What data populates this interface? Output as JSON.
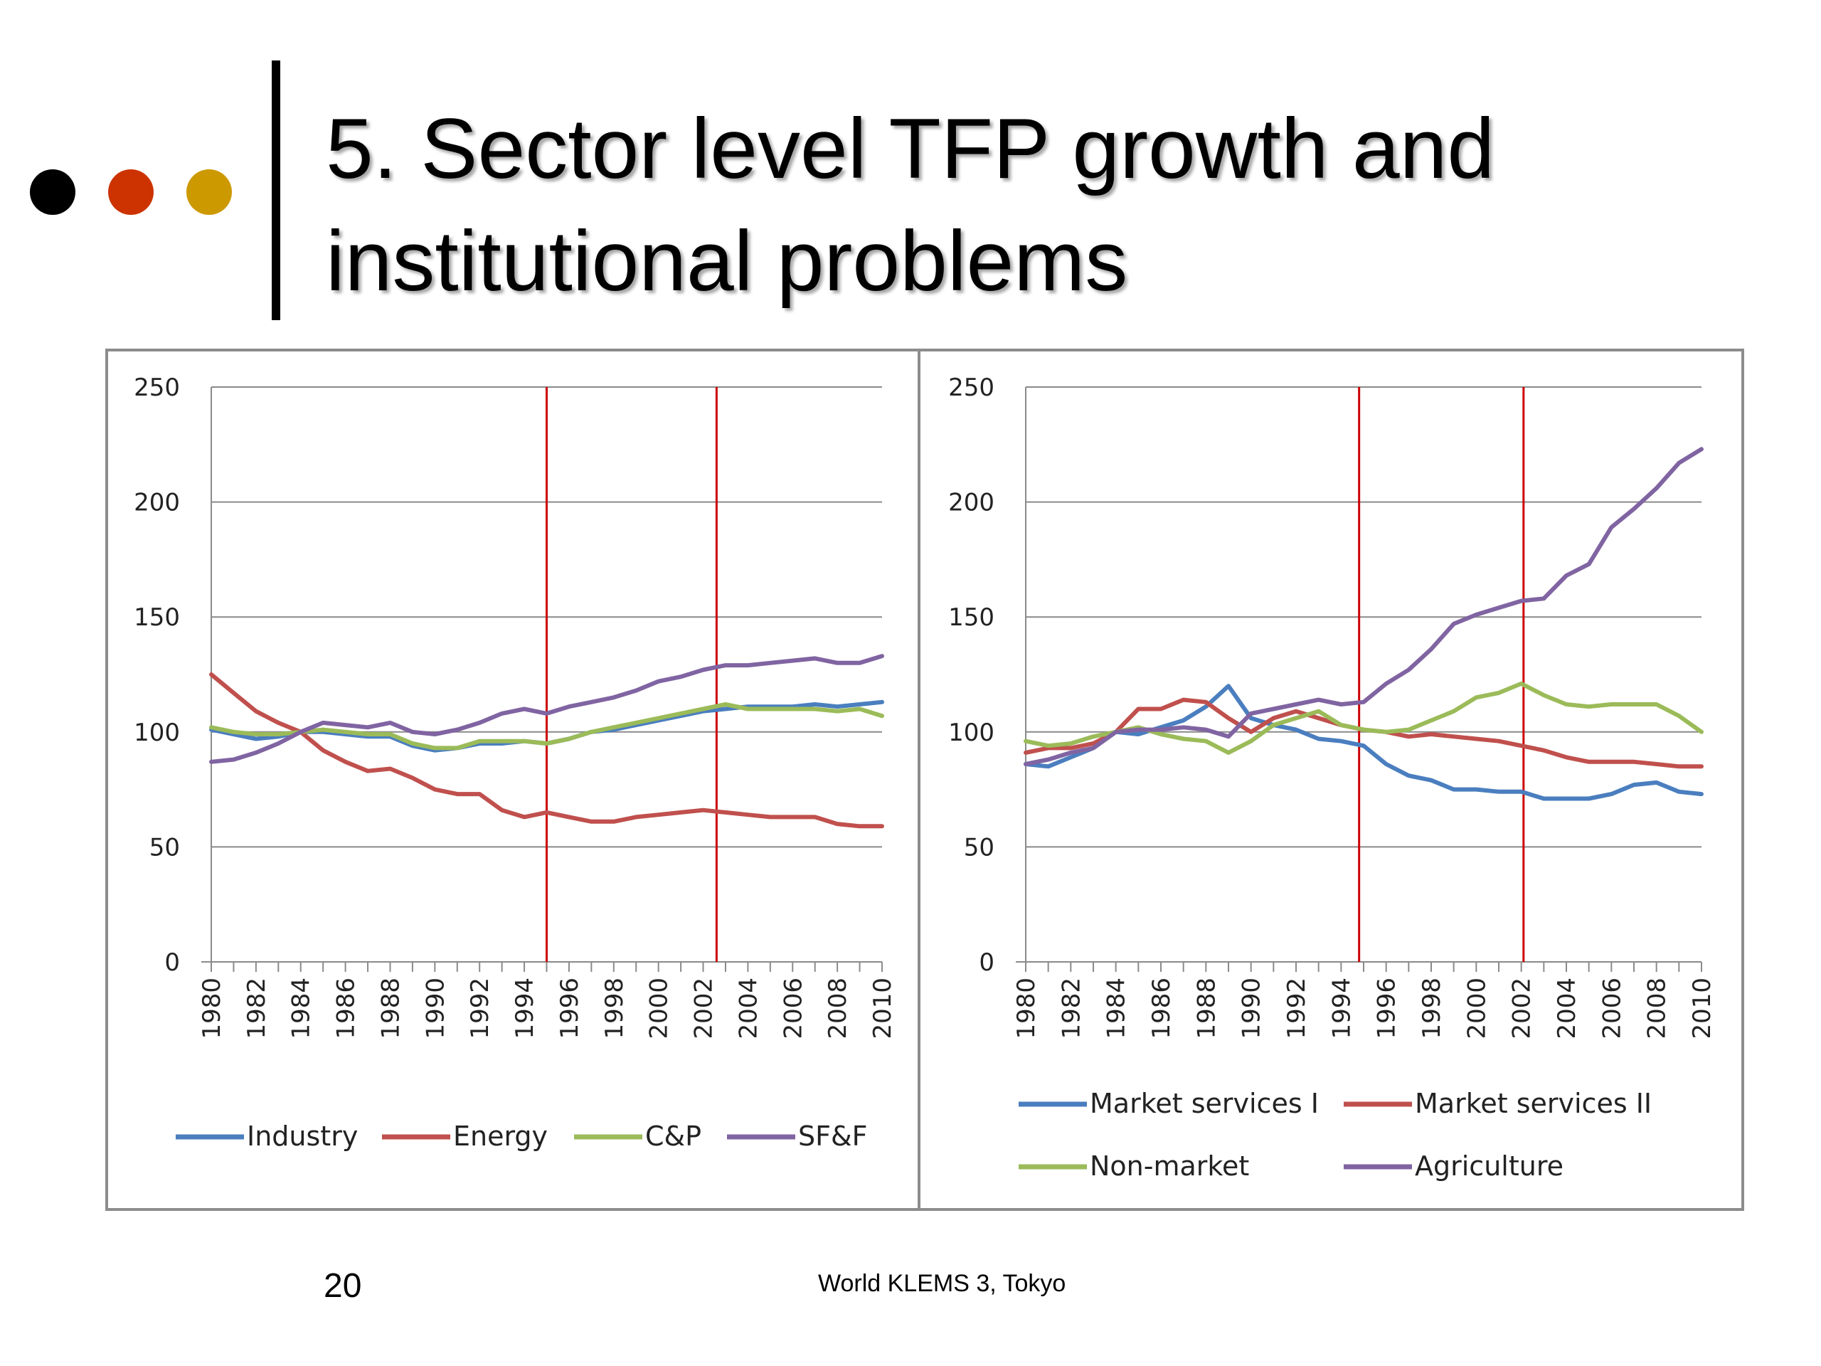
{
  "slide": {
    "title_line1": "5. Sector level TFP growth and",
    "title_line2": "institutional problems",
    "page_number": "20",
    "footer": "World KLEMS 3, Tokyo",
    "bullet_dot_colors": [
      "#000000",
      "#cc3300",
      "#cc9900"
    ]
  },
  "chart_data": [
    {
      "type": "line",
      "title": "",
      "xlabel": "",
      "ylabel": "",
      "ylim": [
        0,
        250
      ],
      "yticks": [
        0,
        50,
        100,
        150,
        200,
        250
      ],
      "x": [
        1980,
        1981,
        1982,
        1983,
        1984,
        1985,
        1986,
        1987,
        1988,
        1989,
        1990,
        1991,
        1992,
        1993,
        1994,
        1995,
        1996,
        1997,
        1998,
        1999,
        2000,
        2001,
        2002,
        2003,
        2004,
        2005,
        2006,
        2007,
        2008,
        2009,
        2010
      ],
      "xtick_labels": [
        "1980",
        "1982",
        "1984",
        "1986",
        "1988",
        "1990",
        "1992",
        "1994",
        "1996",
        "1998",
        "2000",
        "2002",
        "2004",
        "2006",
        "2008",
        "2010"
      ],
      "grid": true,
      "legend": "bottom",
      "reference_lines_x": [
        1995,
        2002.6
      ],
      "reference_line_color": "#cc0000",
      "series": [
        {
          "name": "Industry",
          "color": "#4a7ebf",
          "values": [
            101,
            99,
            97,
            98,
            100,
            100,
            99,
            98,
            98,
            94,
            92,
            93,
            95,
            95,
            96,
            95,
            97,
            100,
            101,
            103,
            105,
            107,
            109,
            110,
            111,
            111,
            111,
            112,
            111,
            112,
            113
          ]
        },
        {
          "name": "Energy",
          "color": "#c0504d",
          "values": [
            125,
            117,
            109,
            104,
            100,
            92,
            87,
            83,
            84,
            80,
            75,
            73,
            73,
            66,
            63,
            65,
            63,
            61,
            61,
            63,
            64,
            65,
            66,
            65,
            64,
            63,
            63,
            63,
            60,
            59,
            59
          ]
        },
        {
          "name": "C&P",
          "color": "#9bbb59",
          "values": [
            102,
            100,
            99,
            99,
            100,
            101,
            100,
            99,
            99,
            95,
            93,
            93,
            96,
            96,
            96,
            95,
            97,
            100,
            102,
            104,
            106,
            108,
            110,
            112,
            110,
            110,
            110,
            110,
            109,
            110,
            107
          ]
        },
        {
          "name": "SF&F",
          "color": "#8064a2",
          "values": [
            87,
            88,
            91,
            95,
            100,
            104,
            103,
            102,
            104,
            100,
            99,
            101,
            104,
            108,
            110,
            108,
            111,
            113,
            115,
            118,
            122,
            124,
            127,
            129,
            129,
            130,
            131,
            132,
            130,
            130,
            133
          ]
        }
      ]
    },
    {
      "type": "line",
      "title": "",
      "xlabel": "",
      "ylabel": "",
      "ylim": [
        0,
        250
      ],
      "yticks": [
        0,
        50,
        100,
        150,
        200,
        250
      ],
      "x": [
        1980,
        1981,
        1982,
        1983,
        1984,
        1985,
        1986,
        1987,
        1988,
        1989,
        1990,
        1991,
        1992,
        1993,
        1994,
        1995,
        1996,
        1997,
        1998,
        1999,
        2000,
        2001,
        2002,
        2003,
        2004,
        2005,
        2006,
        2007,
        2008,
        2009,
        2010
      ],
      "xtick_labels": [
        "1980",
        "1982",
        "1984",
        "1986",
        "1988",
        "1990",
        "1992",
        "1994",
        "1996",
        "1998",
        "2000",
        "2002",
        "2004",
        "2006",
        "2008",
        "2010"
      ],
      "grid": true,
      "legend": "bottom",
      "reference_lines_x": [
        1994.8,
        2002.1
      ],
      "reference_line_color": "#cc0000",
      "series": [
        {
          "name": "Market services I",
          "color": "#4a7ebf",
          "values": [
            86,
            85,
            89,
            93,
            100,
            99,
            102,
            105,
            111,
            120,
            106,
            103,
            101,
            97,
            96,
            94,
            86,
            81,
            79,
            75,
            75,
            74,
            74,
            71,
            71,
            71,
            73,
            77,
            78,
            74,
            73
          ]
        },
        {
          "name": "Market services II",
          "color": "#c0504d",
          "values": [
            91,
            93,
            93,
            95,
            100,
            110,
            110,
            114,
            113,
            106,
            100,
            106,
            109,
            106,
            103,
            101,
            100,
            98,
            99,
            98,
            97,
            96,
            94,
            92,
            89,
            87,
            87,
            87,
            86,
            85,
            85
          ]
        },
        {
          "name": "Non-market",
          "color": "#9bbb59",
          "values": [
            96,
            94,
            95,
            98,
            100,
            102,
            99,
            97,
            96,
            91,
            96,
            103,
            106,
            109,
            103,
            101,
            100,
            101,
            105,
            109,
            115,
            117,
            121,
            116,
            112,
            111,
            112,
            112,
            112,
            107,
            100
          ]
        },
        {
          "name": "Agriculture",
          "color": "#8064a2",
          "values": [
            86,
            88,
            91,
            93,
            100,
            101,
            101,
            102,
            101,
            98,
            108,
            110,
            112,
            114,
            112,
            113,
            121,
            127,
            136,
            147,
            151,
            154,
            157,
            158,
            168,
            173,
            189,
            197,
            206,
            217,
            223
          ]
        }
      ]
    }
  ]
}
